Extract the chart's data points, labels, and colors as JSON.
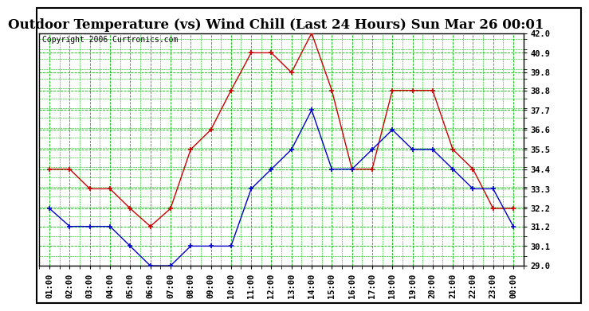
{
  "title": "Outdoor Temperature (vs) Wind Chill (Last 24 Hours) Sun Mar 26 00:01",
  "copyright": "Copyright 2006 Curtronics.com",
  "x_labels": [
    "01:00",
    "02:00",
    "03:00",
    "04:00",
    "05:00",
    "06:00",
    "07:00",
    "08:00",
    "09:00",
    "10:00",
    "11:00",
    "12:00",
    "13:00",
    "14:00",
    "15:00",
    "16:00",
    "17:00",
    "18:00",
    "19:00",
    "20:00",
    "21:00",
    "22:00",
    "23:00",
    "00:00"
  ],
  "temp_red": [
    34.4,
    34.4,
    33.3,
    33.3,
    32.2,
    31.2,
    32.2,
    35.5,
    36.6,
    38.8,
    40.9,
    40.9,
    39.8,
    42.0,
    38.8,
    34.4,
    34.4,
    38.8,
    38.8,
    38.8,
    35.5,
    34.4,
    32.2,
    32.2
  ],
  "wind_blue": [
    32.2,
    31.2,
    31.2,
    31.2,
    30.1,
    29.0,
    29.0,
    30.1,
    30.1,
    30.1,
    33.3,
    34.4,
    35.5,
    37.7,
    34.4,
    34.4,
    35.5,
    36.6,
    35.5,
    35.5,
    34.4,
    33.3,
    33.3,
    31.2
  ],
  "ylim_min": 29.0,
  "ylim_max": 42.0,
  "yticks": [
    29.0,
    30.1,
    31.2,
    32.2,
    33.3,
    34.4,
    35.5,
    36.6,
    37.7,
    38.8,
    39.8,
    40.9,
    42.0
  ],
  "bg_color": "#ffffff",
  "plot_bg_color": "#ffffff",
  "grid_color": "#00bb00",
  "red_color": "#cc0000",
  "blue_color": "#0000cc",
  "title_fontsize": 12,
  "copyright_fontsize": 7,
  "tick_fontsize": 7.5
}
